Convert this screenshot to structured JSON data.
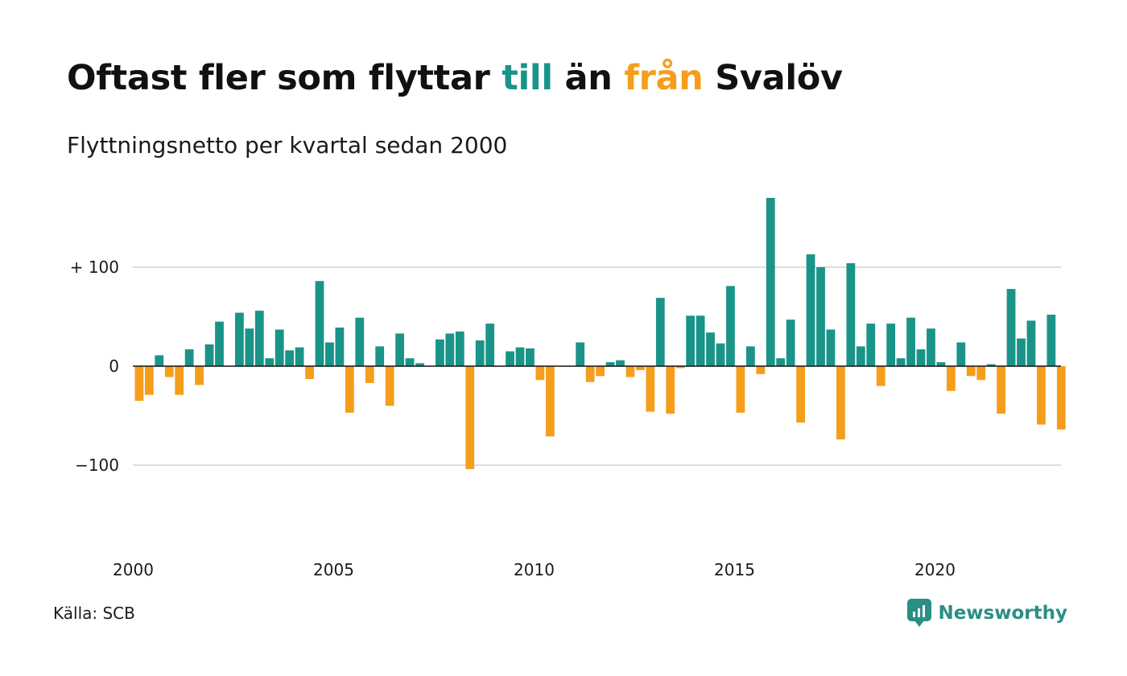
{
  "title": {
    "part1": "Oftast fler som flyttar ",
    "word_till": "till",
    "part2": " än ",
    "word_fran": "från",
    "part3": " Svalöv"
  },
  "subtitle": "Flyttningsnetto per kvartal sedan 2000",
  "source": "Källa: SCB",
  "brand": {
    "name": "Newsworthy",
    "color": "#2a8f84"
  },
  "colors": {
    "positive": "#1a9488",
    "negative": "#f59e1c",
    "grid": "#dddddd",
    "zero_line": "#111111"
  },
  "chart_data": {
    "type": "bar",
    "x_start": "2000 Q1",
    "frequency": "quarterly",
    "ylim": [
      -150,
      175
    ],
    "yticks": [
      {
        "value": 100,
        "label": "+ 100"
      },
      {
        "value": 0,
        "label": "0"
      },
      {
        "value": -100,
        "label": "−100"
      }
    ],
    "xticks": [
      {
        "year": 2000,
        "label": "2000"
      },
      {
        "year": 2005,
        "label": "2005"
      },
      {
        "year": 2010,
        "label": "2010"
      },
      {
        "year": 2015,
        "label": "2015"
      },
      {
        "year": 2020,
        "label": "2020"
      }
    ],
    "grid": true,
    "values": [
      -35,
      -29,
      11,
      -11,
      -29,
      17,
      -19,
      22,
      45,
      0,
      54,
      38,
      56,
      8,
      37,
      16,
      19,
      -13,
      86,
      24,
      39,
      -47,
      49,
      -17,
      20,
      -40,
      33,
      8,
      3,
      0,
      27,
      33,
      35,
      -104,
      26,
      43,
      0,
      15,
      19,
      18,
      -14,
      -71,
      0,
      0,
      24,
      -16,
      -10,
      4,
      6,
      -11,
      -4,
      -46,
      69,
      -48,
      -2,
      51,
      51,
      34,
      23,
      81,
      -47,
      20,
      -8,
      170,
      8,
      47,
      -57,
      113,
      100,
      37,
      -74,
      104,
      20,
      43,
      -20,
      43,
      8,
      49,
      17,
      38,
      4,
      -25,
      24,
      -10,
      -14,
      2,
      -48,
      78,
      28,
      46,
      -59,
      52,
      -64
    ]
  }
}
